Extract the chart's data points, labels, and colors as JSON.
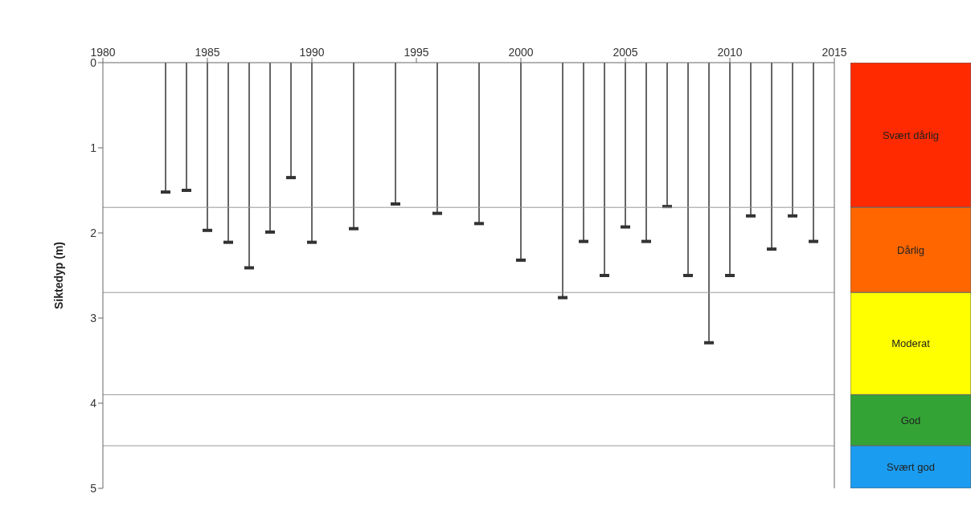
{
  "chart_data": [
    {
      "type": "lollipop",
      "ylabel": "Siktedyp (m)",
      "x": [
        1983,
        1984,
        1985,
        1986,
        1987,
        1988,
        1989,
        1990,
        1992,
        1994,
        1996,
        1998,
        2000,
        2002,
        2003,
        2004,
        2005,
        2006,
        2007,
        2008,
        2009,
        2010,
        2011,
        2012,
        2013,
        2014
      ],
      "values": [
        1.52,
        1.5,
        1.97,
        2.11,
        2.41,
        1.99,
        1.35,
        2.11,
        1.95,
        1.66,
        1.77,
        1.89,
        2.32,
        2.76,
        2.1,
        2.5,
        1.93,
        2.1,
        1.69,
        2.5,
        3.29,
        2.5,
        1.8,
        2.19,
        1.8,
        2.1
      ],
      "color": "#333333",
      "xlim": [
        1980,
        2015
      ],
      "xticks": [
        1980,
        1985,
        1990,
        1995,
        2000,
        2005,
        2010,
        2015
      ],
      "ylim": [
        5,
        0
      ],
      "yticks": [
        0,
        1,
        2,
        3,
        4,
        5
      ],
      "ref_lines": [
        {
          "axis": "y",
          "value": 1.7,
          "color": "#999999"
        },
        {
          "axis": "y",
          "value": 2.7,
          "color": "#999999"
        },
        {
          "axis": "y",
          "value": 3.9,
          "color": "#999999"
        },
        {
          "axis": "y",
          "value": 4.5,
          "color": "#999999"
        }
      ]
    },
    {
      "type": "bar",
      "stacked": true,
      "categories": [
        null
      ],
      "ylim": [
        5,
        0
      ],
      "series": [
        {
          "name": "Svært dårlig",
          "color": "#ff2a00",
          "values": [
            1.7
          ]
        },
        {
          "name": "Dårlig",
          "color": "#ff6600",
          "values": [
            1.0
          ]
        },
        {
          "name": "Moderat",
          "color": "#ffff00",
          "values": [
            1.2
          ]
        },
        {
          "name": "God",
          "color": "#33a335",
          "values": [
            0.6
          ]
        },
        {
          "name": "Svært god",
          "color": "#1a9cf0",
          "values": [
            0.5
          ]
        }
      ]
    }
  ]
}
